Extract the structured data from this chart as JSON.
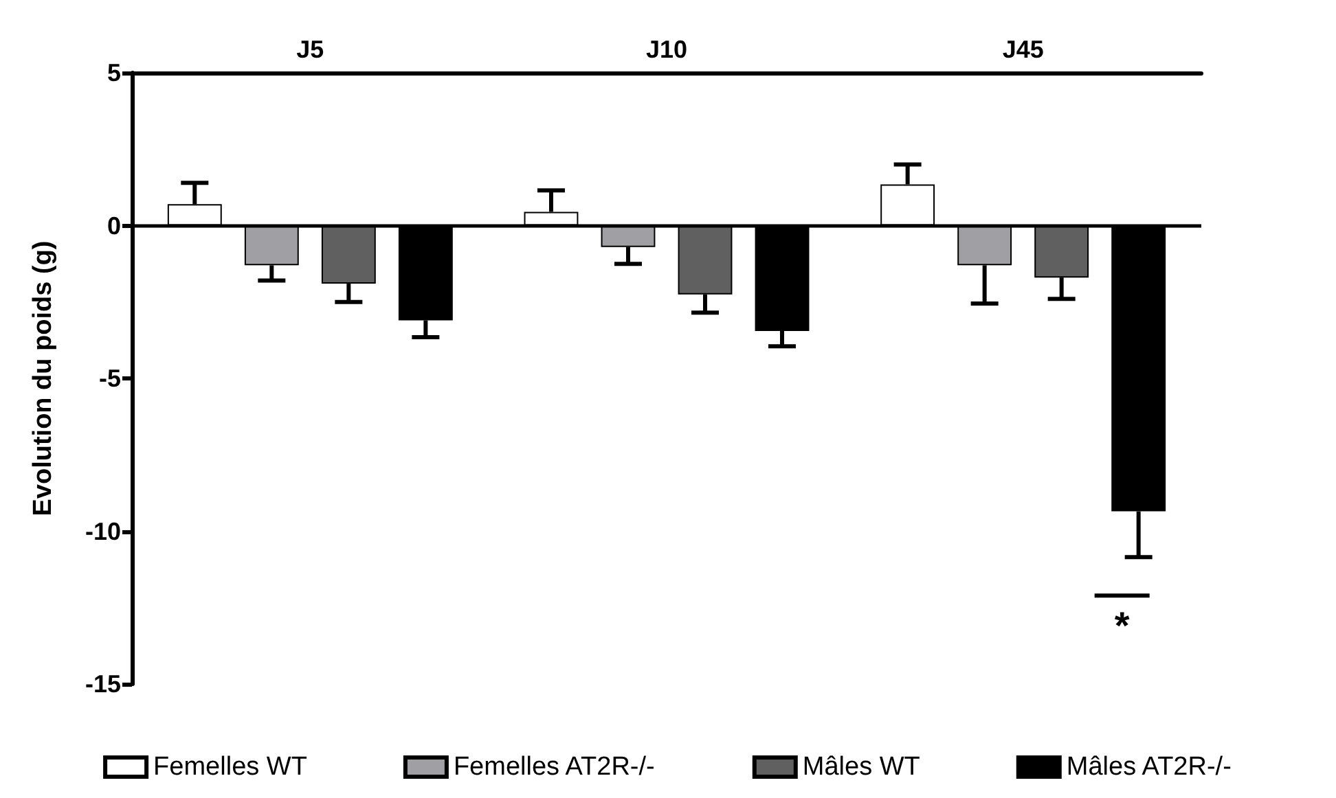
{
  "chart_data": {
    "type": "bar",
    "ylabel": "Evolution du poids (g)",
    "categories": [
      "J5",
      "J10",
      "J45"
    ],
    "series": [
      {
        "name": "Femelles WT",
        "color": "#ffffff",
        "values": [
          0.7,
          0.45,
          1.35
        ],
        "errors": [
          0.7,
          0.7,
          0.65
        ]
      },
      {
        "name": "Femelles AT2R-/-",
        "color": "#a0a0a4",
        "values": [
          -1.3,
          -0.7,
          -1.3
        ],
        "errors": [
          0.5,
          0.55,
          1.25
        ]
      },
      {
        "name": "Mâles WT",
        "color": "#606060",
        "values": [
          -1.9,
          -2.25,
          -1.7
        ],
        "errors": [
          0.6,
          0.6,
          0.7
        ]
      },
      {
        "name": "Mâles AT2R-/-",
        "color": "#000000",
        "values": [
          -3.1,
          -3.45,
          -9.35
        ],
        "errors": [
          0.55,
          0.5,
          1.5
        ]
      }
    ],
    "ylim": [
      -15,
      5
    ],
    "yticks": [
      -15,
      -10,
      -5,
      0,
      5
    ],
    "ref_lines": [
      {
        "axis": "y",
        "value": 0
      }
    ],
    "annotations": [
      "*"
    ],
    "grid": false,
    "legend": "bottom"
  }
}
